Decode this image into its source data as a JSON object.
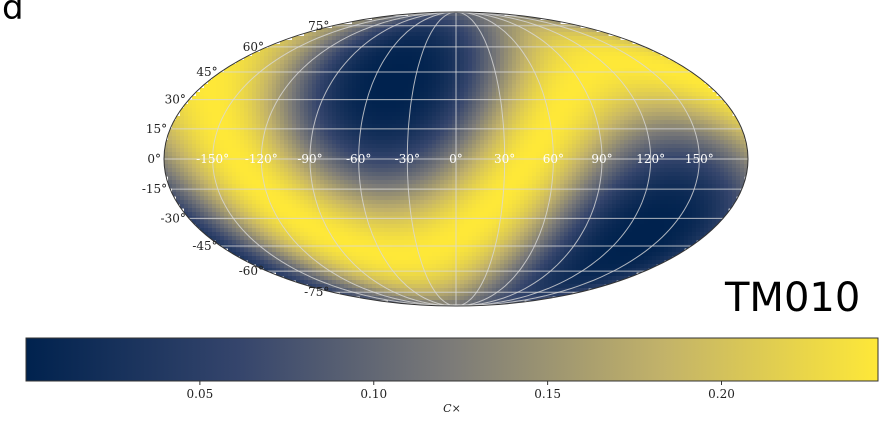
{
  "panel_label": "d",
  "mode_label": "TM010",
  "chart_data": {
    "type": "heatmap",
    "projection": "mollweide",
    "longitude_ticks": [
      "-150°",
      "-120°",
      "-90°",
      "-60°",
      "-30°",
      "0°",
      "30°",
      "60°",
      "90°",
      "120°",
      "150°"
    ],
    "latitude_ticks": [
      "75°",
      "60°",
      "45°",
      "30°",
      "15°",
      "0°",
      "-15°",
      "-30°",
      "-45°",
      "-60°",
      "-75°"
    ],
    "longitude_values": [
      -150,
      -120,
      -90,
      -60,
      -30,
      0,
      30,
      60,
      90,
      120,
      150
    ],
    "latitude_values": [
      75,
      60,
      45,
      30,
      15,
      0,
      -15,
      -30,
      -45,
      -60,
      -75
    ],
    "field_description": "Two-lobe dipole pattern: minima near (lon -45°, lat 40°) and (lon 135°, lat -40°); maximum band along the great circle between them",
    "minimum_locations": [
      {
        "lon": -45,
        "lat": 40
      },
      {
        "lon": 135,
        "lat": -40
      }
    ],
    "colorbar": {
      "label": "C×",
      "range": [
        0.0,
        0.245
      ],
      "ticks": [
        0.05,
        0.1,
        0.15,
        0.2
      ],
      "tick_labels": [
        "0.05",
        "0.10",
        "0.15",
        "0.20"
      ],
      "colormap": "cividis",
      "low_color": "#00224e",
      "mid_color": "#7c7b78",
      "high_color": "#fee838"
    },
    "grid": true
  }
}
